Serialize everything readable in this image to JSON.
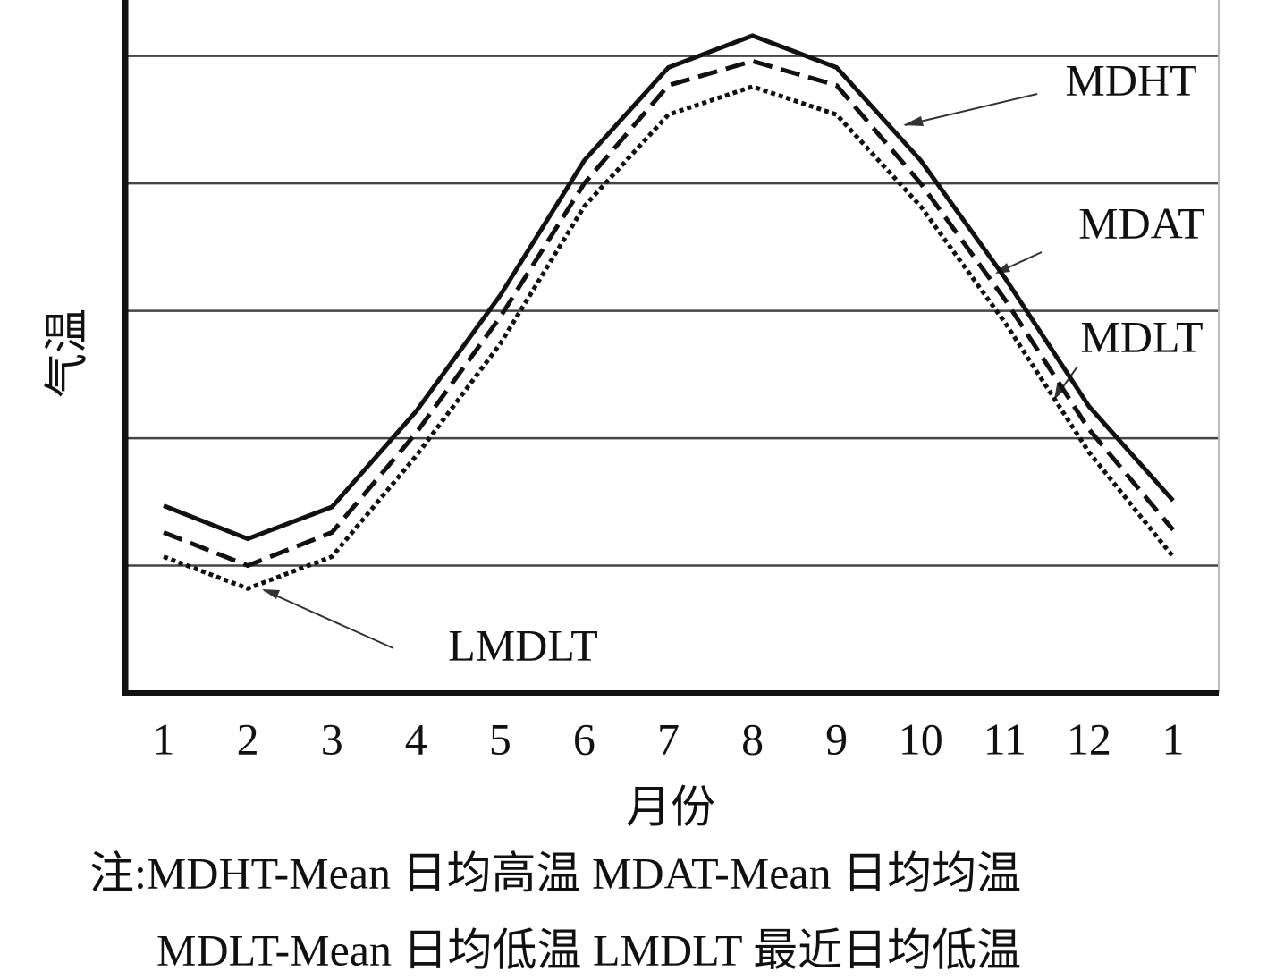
{
  "chart_data": {
    "type": "line",
    "x_label": "月份",
    "y_label": "气温",
    "categories": [
      "1",
      "2",
      "3",
      "4",
      "5",
      "6",
      "7",
      "8",
      "9",
      "10",
      "11",
      "12",
      "1"
    ],
    "series": [
      {
        "name": "MDHT",
        "color": "#111111",
        "dash": "solid",
        "values": [
          1.47,
          1.21,
          1.46,
          2.21,
          3.12,
          4.18,
          4.91,
          5.16,
          4.91,
          4.18,
          3.26,
          2.25,
          1.51
        ]
      },
      {
        "name": "MDAT",
        "color": "#111111",
        "dash": "dashed",
        "values": [
          1.26,
          1.0,
          1.26,
          2.04,
          2.95,
          4.0,
          4.77,
          4.96,
          4.77,
          4.0,
          3.09,
          2.07,
          1.28
        ]
      },
      {
        "name": "MDLT",
        "color": "#111111",
        "dash": "dotted",
        "values": [
          1.07,
          0.82,
          1.07,
          1.86,
          2.74,
          3.82,
          4.54,
          4.76,
          4.54,
          3.82,
          2.91,
          1.89,
          1.07
        ]
      }
    ],
    "annotation": "LMDLT",
    "ylim": [
      0,
      5.44
    ],
    "grid_lines": [
      1,
      2,
      3,
      4,
      5
    ],
    "notes": [
      "注:MDHT-Mean 日均高温 MDAT-Mean 日均均温",
      "MDLT-Mean 日均低温 LMDLT 最近日均低温"
    ]
  }
}
